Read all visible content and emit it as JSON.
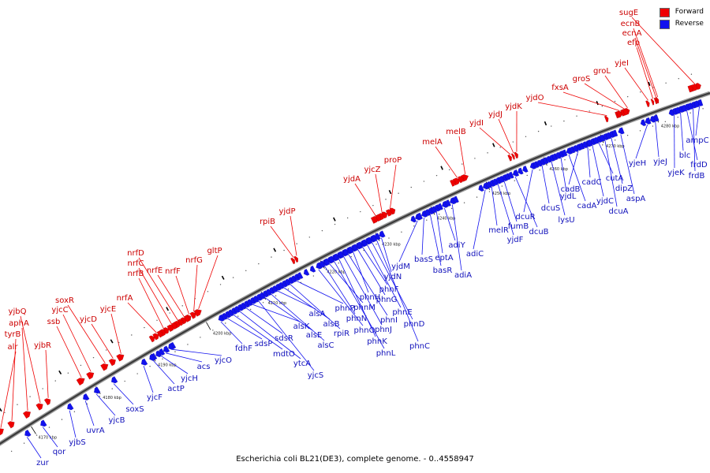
{
  "legend": {
    "forward_label": "Forward",
    "reverse_label": "Reverse",
    "forward_color": "#ee0000",
    "reverse_color": "#1111ee"
  },
  "caption": "Escherichia coli BL21(DE3), complete genome. - 0..4558947",
  "kbp_ticks": [
    "4170 kbp",
    "4180 kbp",
    "4190 kbp",
    "4200 kbp",
    "4210 kbp",
    "4220 kbp",
    "4230 kbp",
    "4240 kbp",
    "4250 kbp",
    "4260 kbp",
    "4270 kbp",
    "4280 kbp"
  ],
  "forward_genes": [
    "alr",
    "tyrB",
    "aphA",
    "yjbQ",
    "yjbR",
    "ssb",
    "yjcC",
    "soxR",
    "yjcD",
    "yjcE",
    "nrfA",
    "nrfB",
    "nrfC",
    "nrfD",
    "nrfE",
    "nrfF",
    "nrfG",
    "gltP",
    "rpiB",
    "yjdP",
    "yjdA",
    "yjcZ",
    "proP",
    "melA",
    "melB",
    "yjdI",
    "yjdJ",
    "yjdK",
    "yjdO",
    "fxsA",
    "groS",
    "groL",
    "yjeI",
    "efp",
    "ecnA",
    "ecnB",
    "sugE"
  ],
  "reverse_genes": [
    "zur",
    "qor",
    "yjbS",
    "uvrA",
    "yjcB",
    "soxS",
    "yjcF",
    "actP",
    "yjcH",
    "acs",
    "yjcO",
    "fdhF",
    "sdsP",
    "mdtO",
    "ytcA",
    "sdsR",
    "alsK",
    "yjcS",
    "alsE",
    "alsC",
    "alsA",
    "alsB",
    "rpiR",
    "phnP",
    "phnO",
    "phnN",
    "phnM",
    "phnL",
    "phnK",
    "phnJ",
    "phnI",
    "phnH",
    "phnG",
    "phnF",
    "phnE",
    "phnD",
    "phnC",
    "yjdN",
    "yjdM",
    "basS",
    "basR",
    "eptA",
    "adiY",
    "adiA",
    "adiC",
    "melR",
    "yjdF",
    "fumB",
    "dcuB",
    "dcuR",
    "dcuS",
    "lysU",
    "yjdL",
    "cadA",
    "cadB",
    "cadC",
    "yjdC",
    "cutA",
    "dcuA",
    "dipZ",
    "aspA",
    "yjeH",
    "yjeJ",
    "yjeK",
    "blc",
    "frdD",
    "frdB",
    "ampC"
  ]
}
